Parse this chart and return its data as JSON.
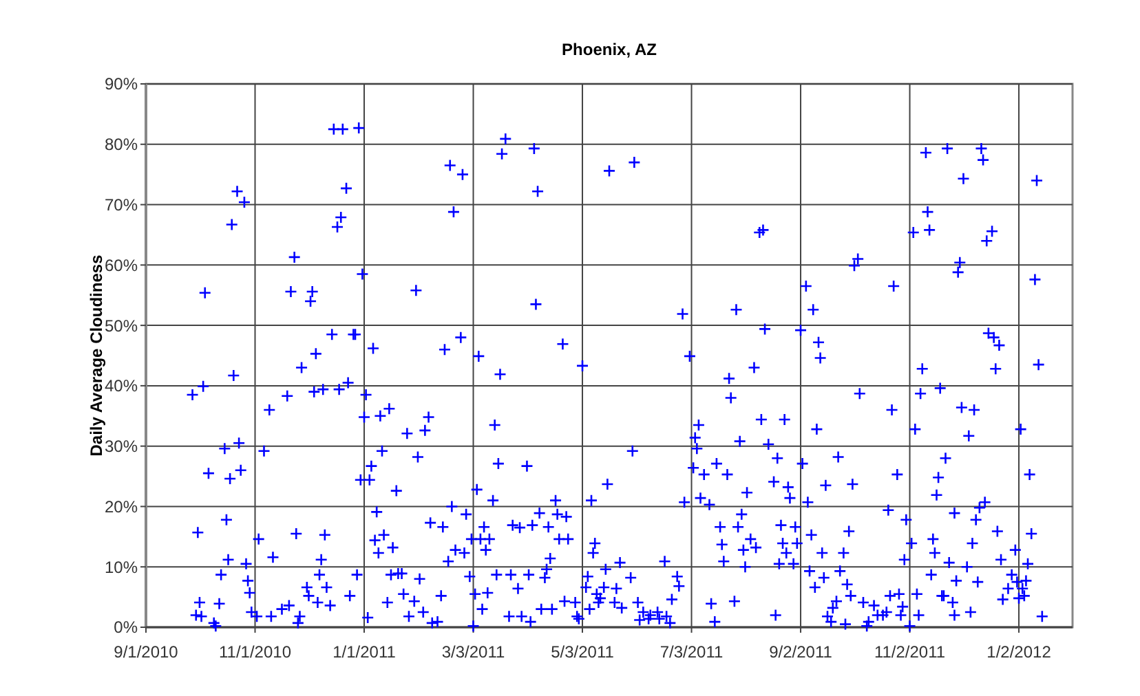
{
  "chart_data": {
    "type": "scatter",
    "title": "Phoenix, AZ",
    "ylabel": "Daily Average Cloudiness",
    "xlim": [
      "2010-09-01",
      "2012-02-01"
    ],
    "xticks": [
      {
        "value": "2010-09-01",
        "label": "9/1/2010"
      },
      {
        "value": "2010-11-01",
        "label": "11/1/2010"
      },
      {
        "value": "2011-01-01",
        "label": "1/1/2011"
      },
      {
        "value": "2011-03-03",
        "label": "3/3/2011"
      },
      {
        "value": "2011-05-03",
        "label": "5/3/2011"
      },
      {
        "value": "2011-07-03",
        "label": "7/3/2011"
      },
      {
        "value": "2011-09-02",
        "label": "9/2/2011"
      },
      {
        "value": "2011-11-02",
        "label": "11/2/2011"
      },
      {
        "value": "2012-01-02",
        "label": "1/2/2012"
      }
    ],
    "ylim": [
      0,
      90
    ],
    "yticks": [
      {
        "value": 0,
        "label": "0%"
      },
      {
        "value": 10,
        "label": "10%"
      },
      {
        "value": 20,
        "label": "20%"
      },
      {
        "value": 30,
        "label": "30%"
      },
      {
        "value": 40,
        "label": "40%"
      },
      {
        "value": 50,
        "label": "50%"
      },
      {
        "value": 60,
        "label": "60%"
      },
      {
        "value": 70,
        "label": "70%"
      },
      {
        "value": 80,
        "label": "80%"
      },
      {
        "value": 90,
        "label": "90%"
      }
    ],
    "grid": true,
    "marker": "cross",
    "series": [
      {
        "color": "#0000ff",
        "x": [
          "2010-12-15",
          "2010-12-20",
          "2010-12-29",
          "2011-02-18",
          "2011-02-25",
          "2010-10-22",
          "2010-10-26",
          "2010-12-22",
          "2010-10-19",
          "2010-12-19",
          "2010-12-17",
          "2011-02-20",
          "2010-11-23",
          "2010-10-04",
          "2010-11-21",
          "2010-12-03",
          "2010-12-02",
          "2010-12-31",
          "2011-01-30",
          "2010-12-14",
          "2010-12-26",
          "2010-12-27",
          "2011-01-06",
          "2011-02-15",
          "2011-02-24",
          "2010-12-05",
          "2010-11-27",
          "2011-03-21",
          "2011-03-19",
          "2011-04-06",
          "2011-04-08",
          "2011-05-18",
          "2011-06-01",
          "2011-08-10",
          "2011-08-12",
          "2011-04-07",
          "2011-06-28",
          "2011-07-28",
          "2011-08-13",
          "2011-03-06",
          "2011-04-22",
          "2011-05-03",
          "2011-07-02",
          "2011-08-07",
          "2011-11-11",
          "2011-11-23",
          "2011-12-12",
          "2011-12-13",
          "2011-12-02",
          "2012-01-12",
          "2011-11-12",
          "2011-11-04",
          "2011-11-13",
          "2011-12-18",
          "2011-12-15",
          "2011-10-04",
          "2011-10-02",
          "2011-11-30",
          "2011-11-29",
          "2011-09-05",
          "2011-10-24",
          "2011-09-09",
          "2012-01-11",
          "2011-09-02",
          "2011-09-12",
          "2011-09-13",
          "2011-12-16",
          "2011-12-19",
          "2011-12-22",
          "2012-01-13",
          "2011-11-09",
          "2011-12-20",
          "2010-10-20",
          "2010-10-03",
          "2010-09-27",
          "2010-11-09",
          "2010-11-19",
          "2010-12-04",
          "2010-12-09",
          "2010-12-18",
          "2010-12-23",
          "2011-01-02",
          "2011-01-01",
          "2011-01-10",
          "2011-01-15",
          "2011-02-06",
          "2011-02-04",
          "2011-01-25",
          "2011-01-31",
          "2010-10-15",
          "2010-10-23",
          "2010-11-06",
          "2010-10-06",
          "2010-10-18",
          "2010-10-24",
          "2011-01-11",
          "2011-01-05",
          "2010-12-30",
          "2011-01-04",
          "2011-01-19",
          "2011-01-08",
          "2010-09-30",
          "2010-10-16",
          "2010-11-03",
          "2010-11-24",
          "2010-12-10",
          "2010-10-17",
          "2010-10-13",
          "2010-10-27",
          "2010-11-11",
          "2010-10-28",
          "2010-10-29",
          "2010-12-08",
          "2010-12-07",
          "2010-12-11",
          "2010-11-30",
          "2010-12-01",
          "2010-12-06",
          "2010-12-13",
          "2010-12-28",
          "2010-12-24",
          "2011-02-07",
          "2011-02-14",
          "2011-01-07",
          "2011-01-12",
          "2011-01-09",
          "2011-01-17",
          "2011-01-16",
          "2011-01-20",
          "2011-01-22",
          "2011-02-01",
          "2011-02-13",
          "2011-01-23",
          "2011-01-29",
          "2011-01-14",
          "2011-02-21",
          "2011-02-17",
          "2011-02-26",
          "2011-02-19",
          "2011-02-27",
          "2010-10-01",
          "2010-09-29",
          "2010-10-02",
          "2010-10-09",
          "2010-10-10",
          "2010-10-12",
          "2010-10-30",
          "2010-11-02",
          "2010-11-10",
          "2010-11-16",
          "2010-11-20",
          "2010-11-26",
          "2010-11-25",
          "2011-01-03",
          "2011-01-26",
          "2011-02-03",
          "2011-02-08",
          "2011-02-11",
          "2011-03-18",
          "2011-07-24",
          "2011-07-25",
          "2011-08-11",
          "2011-08-24",
          "2011-03-15",
          "2011-07-07",
          "2011-07-05",
          "2011-07-06",
          "2011-05-31",
          "2011-07-30",
          "2011-08-15",
          "2011-08-20",
          "2011-03-17",
          "2011-04-02",
          "2011-07-04",
          "2011-07-10",
          "2011-07-17",
          "2011-07-23",
          "2011-05-17",
          "2011-03-05",
          "2011-03-14",
          "2011-04-18",
          "2011-05-08",
          "2011-06-29",
          "2011-07-08",
          "2011-07-13",
          "2011-08-03",
          "2011-08-18",
          "2011-04-09",
          "2011-04-19",
          "2011-04-24",
          "2011-03-09",
          "2011-03-25",
          "2011-03-29",
          "2011-04-05",
          "2011-04-14",
          "2011-03-02",
          "2011-03-07",
          "2011-03-12",
          "2011-03-10",
          "2011-04-20",
          "2011-04-25",
          "2011-04-15",
          "2011-07-19",
          "2011-07-29",
          "2011-07-31",
          "2011-07-20",
          "2011-08-01",
          "2011-08-05",
          "2011-08-08",
          "2011-08-22",
          "2011-08-23",
          "2011-07-21",
          "2011-08-02",
          "2011-08-21",
          "2011-05-10",
          "2011-05-09",
          "2011-06-18",
          "2011-05-24",
          "2011-05-16",
          "2011-05-30",
          "2011-06-25",
          "2011-06-26",
          "2011-03-16",
          "2011-03-24",
          "2011-03-28",
          "2011-04-03",
          "2011-04-12",
          "2011-03-01",
          "2011-04-13",
          "2011-03-11",
          "2011-03-04",
          "2011-05-06",
          "2011-05-05",
          "2011-04-23",
          "2011-04-29",
          "2011-05-11",
          "2011-05-12",
          "2011-05-15",
          "2011-05-22",
          "2011-05-21",
          "2011-05-25",
          "2011-03-08",
          "2011-03-23",
          "2011-03-30",
          "2011-04-04",
          "2011-04-10",
          "2011-04-16",
          "2011-04-30",
          "2011-05-01",
          "2011-06-03",
          "2011-06-06",
          "2011-06-10",
          "2011-06-14",
          "2011-06-15",
          "2011-06-19",
          "2011-06-21",
          "2011-06-09",
          "2011-06-04",
          "2011-06-22",
          "2011-07-14",
          "2011-07-16",
          "2011-07-27",
          "2011-05-07",
          "2011-05-13",
          "2011-03-03",
          "2011-10-05",
          "2011-11-08",
          "2011-11-19",
          "2011-10-23",
          "2011-12-01",
          "2011-12-08",
          "2011-09-11",
          "2011-11-05",
          "2011-12-05",
          "2012-01-03",
          "2011-09-03",
          "2011-09-23",
          "2011-11-22",
          "2011-10-26",
          "2011-11-18",
          "2012-01-08",
          "2011-08-26",
          "2011-09-16",
          "2011-10-01",
          "2011-08-27",
          "2011-09-06",
          "2011-11-17",
          "2011-12-14",
          "2011-12-11",
          "2011-10-21",
          "2011-10-31",
          "2011-11-27",
          "2011-12-09",
          "2011-08-30",
          "2011-09-29",
          "2011-12-21",
          "2012-01-09",
          "2011-09-08",
          "2011-08-31",
          "2011-11-03",
          "2011-11-15",
          "2011-12-07",
          "2011-12-31",
          "2011-08-25",
          "2011-09-14",
          "2011-09-26",
          "2011-11-16",
          "2011-11-24",
          "2011-12-04",
          "2011-12-23",
          "2011-10-30",
          "2011-08-29",
          "2011-09-07",
          "2011-09-24",
          "2011-09-15",
          "2011-11-14",
          "2011-11-28",
          "2011-12-10",
          "2011-09-10",
          "2011-09-28",
          "2012-01-07",
          "2011-12-29",
          "2012-01-01",
          "2012-01-06",
          "2011-12-27",
          "2012-01-04",
          "2011-12-24",
          "2012-01-02",
          "2012-01-05",
          "2012-01-15",
          "2011-09-30",
          "2011-09-22",
          "2011-09-20",
          "2011-09-17",
          "2011-09-19",
          "2011-09-27",
          "2011-10-07",
          "2011-10-09",
          "2011-10-13",
          "2011-10-15",
          "2011-10-18",
          "2011-10-10",
          "2011-10-22",
          "2011-10-27",
          "2011-10-20",
          "2011-10-28",
          "2011-10-29",
          "2011-11-02",
          "2011-11-07",
          "2011-11-06",
          "2011-11-20",
          "2011-11-21",
          "2011-11-26",
          "2011-11-27",
          "2011-12-06",
          "2011-08-19"
        ],
        "values": [
          82.5,
          82.5,
          82.7,
          76.5,
          75,
          72.2,
          70.4,
          72.7,
          66.7,
          67.9,
          66.3,
          68.8,
          61.3,
          55.4,
          55.6,
          55.6,
          54,
          58.5,
          55.8,
          48.5,
          48.5,
          48.5,
          46.2,
          46,
          48,
          45.3,
          43,
          80.9,
          78.4,
          79.3,
          72.2,
          75.6,
          77,
          65.4,
          65.8,
          53.5,
          51.9,
          52.6,
          49.4,
          44.9,
          46.9,
          43.3,
          44.9,
          43,
          78.6,
          79.3,
          79.3,
          77.4,
          74.3,
          74,
          68.8,
          65.4,
          65.8,
          65.6,
          64,
          61,
          59.9,
          60.4,
          58.8,
          56.5,
          56.5,
          52.6,
          57.6,
          49.2,
          47.2,
          44.6,
          48.7,
          48,
          46.7,
          43.5,
          42.8,
          42.8,
          41.7,
          39.9,
          38.5,
          36,
          38.3,
          39,
          39.4,
          39.4,
          40.5,
          38.5,
          34.8,
          35,
          36.2,
          34.8,
          32.6,
          32.1,
          28.2,
          29.6,
          30.5,
          29.2,
          25.5,
          24.6,
          26,
          29.2,
          26.7,
          24.4,
          24.4,
          22.6,
          19.1,
          15.7,
          17.8,
          14.6,
          15.5,
          15.3,
          11.2,
          8.7,
          10.5,
          11.6,
          7.7,
          5.7,
          11.2,
          8.7,
          6.6,
          6.6,
          5.2,
          4.1,
          3.6,
          8.7,
          5.2,
          17.3,
          16.6,
          14.4,
          15.3,
          12.3,
          13.2,
          8.7,
          8.9,
          8.9,
          8,
          5.2,
          5.5,
          4.3,
          4.1,
          12.8,
          10.9,
          12.3,
          20,
          18.7,
          4.1,
          2,
          1.8,
          0.7,
          0.2,
          3.9,
          2.5,
          1.8,
          1.8,
          3,
          3.6,
          1.8,
          0.7,
          1.6,
          1.8,
          2.5,
          0.7,
          0.9,
          41.9,
          41.2,
          38,
          34.4,
          34.4,
          33.5,
          33.5,
          31.4,
          29.6,
          29.2,
          30.8,
          30.3,
          28,
          27.1,
          26.7,
          26.4,
          25.3,
          27.1,
          25.3,
          23.7,
          22.8,
          21,
          21,
          21,
          20.7,
          21.4,
          20.3,
          22.3,
          24.1,
          18.9,
          18.7,
          18.3,
          16.6,
          16.9,
          16.5,
          16.9,
          16.6,
          14.6,
          14.6,
          14.6,
          12.8,
          14.6,
          14.6,
          11.4,
          16.6,
          16.6,
          18.7,
          13.7,
          12.8,
          14.6,
          13.2,
          16.9,
          13.9,
          10.9,
          10,
          10.5,
          13.9,
          12.3,
          10.9,
          10.7,
          9.6,
          8.2,
          8.4,
          6.8,
          8.7,
          8.7,
          6.4,
          8.7,
          8.2,
          8.4,
          9.6,
          5.7,
          5.5,
          8.4,
          6.6,
          4.3,
          4.1,
          5.5,
          4.1,
          6.6,
          6.4,
          4.1,
          3.2,
          3,
          1.8,
          1.8,
          0.9,
          3,
          3,
          1.8,
          1.4,
          4.1,
          2.5,
          2,
          2.5,
          1.4,
          1.8,
          0.7,
          1.4,
          1.2,
          4.6,
          3.9,
          0.9,
          4.3,
          3,
          4.8,
          0.2,
          38.7,
          38.7,
          39.6,
          36,
          36.4,
          36,
          32.8,
          32.8,
          31.7,
          32.8,
          27.1,
          28.2,
          28,
          25.3,
          24.8,
          25.3,
          23.2,
          23.5,
          23.7,
          21.4,
          20.7,
          21.9,
          20.7,
          19.8,
          19.4,
          17.8,
          18.9,
          17.8,
          16.6,
          15.9,
          15.9,
          15.5,
          15.3,
          13.9,
          13.9,
          14.6,
          13.9,
          12.8,
          12.3,
          12.3,
          12.3,
          12.3,
          10.7,
          10,
          11.2,
          11.2,
          10.5,
          9.3,
          9.3,
          8.2,
          8.7,
          7.7,
          7.5,
          6.6,
          7.1,
          10.5,
          8.7,
          7.5,
          7.7,
          6.4,
          6.4,
          4.6,
          4.8,
          5.2,
          1.8,
          5.2,
          4.3,
          3.2,
          1.8,
          0.9,
          0.5,
          4.1,
          0.2,
          3.6,
          2,
          2,
          0.9,
          5.2,
          5.5,
          2.5,
          2,
          3.4,
          0.2,
          2,
          5.5,
          5.2,
          5.2,
          4.1,
          2,
          2.5,
          2
        ]
      }
    ]
  }
}
